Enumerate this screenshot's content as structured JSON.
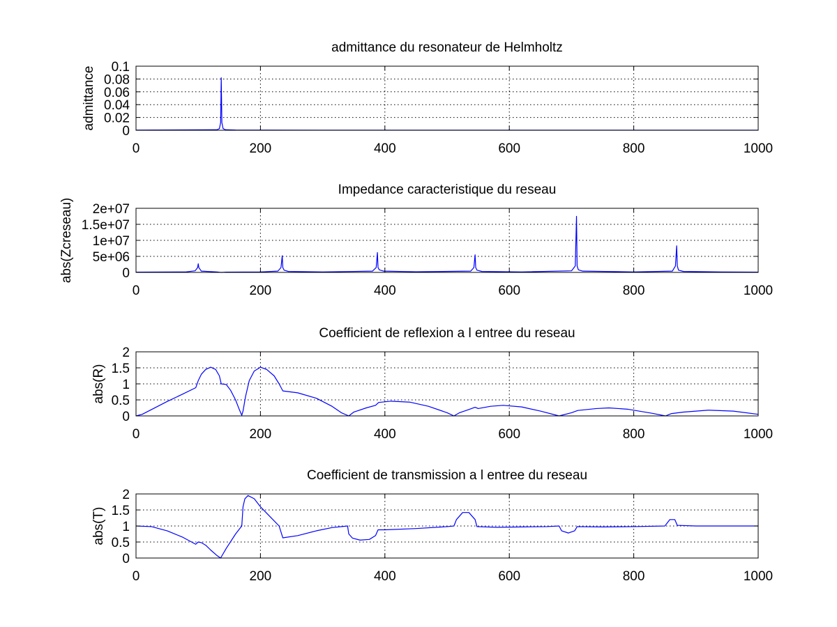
{
  "chart_data": [
    {
      "type": "line",
      "title": "admittance du resonateur de Helmholtz",
      "xlabel": "",
      "ylabel": "admittance",
      "xlim": [
        0,
        1000
      ],
      "ylim": [
        0,
        0.1
      ],
      "xticks": [
        0,
        200,
        400,
        600,
        800,
        1000
      ],
      "xtick_labels": [
        "0",
        "200",
        "400",
        "600",
        "800",
        "1000"
      ],
      "yticks": [
        0,
        0.02,
        0.04,
        0.06,
        0.08,
        0.1
      ],
      "ytick_labels": [
        "0",
        "0.02",
        "0.04",
        "0.06",
        "0.08",
        "0.1"
      ],
      "grid": true,
      "line_color": "#0000ff",
      "series": [
        {
          "x": [
            0,
            130,
            134,
            136,
            137,
            138,
            140,
            144,
            160,
            300,
            600,
            1000
          ],
          "y": [
            0.0003,
            0.0008,
            0.0025,
            0.012,
            0.082,
            0.012,
            0.0025,
            0.0008,
            0.0004,
            0.0002,
            0.0001,
            0.0001
          ]
        }
      ]
    },
    {
      "type": "line",
      "title": "Impedance caracteristique du reseau",
      "xlabel": "",
      "ylabel": "abs(Zcreseau)",
      "xlim": [
        0,
        1000
      ],
      "ylim": [
        0,
        20000000
      ],
      "xticks": [
        0,
        200,
        400,
        600,
        800,
        1000
      ],
      "xtick_labels": [
        "0",
        "200",
        "400",
        "600",
        "800",
        "1000"
      ],
      "yticks": [
        0,
        5000000,
        10000000,
        15000000,
        20000000
      ],
      "ytick_labels": [
        "0",
        "5e+06",
        "1e+07",
        "1.5e+07",
        "2e+07"
      ],
      "grid": true,
      "line_color": "#0000ff",
      "series": [
        {
          "x": [
            0,
            80,
            95,
            99,
            100,
            101,
            105,
            130,
            136,
            137,
            138,
            145,
            200,
            228,
            233,
            235,
            236,
            238,
            245,
            300,
            380,
            386,
            388,
            389,
            391,
            398,
            450,
            538,
            543,
            545,
            546,
            548,
            556,
            620,
            700,
            706,
            708,
            709,
            711,
            718,
            800,
            862,
            867,
            869,
            870,
            872,
            880,
            940,
            1000
          ],
          "y": [
            100000,
            150000,
            500000,
            1500000,
            2700000,
            1500000,
            400000,
            150000,
            0,
            0,
            0,
            80000,
            150000,
            400000,
            1500000,
            5200000,
            1500000,
            700000,
            300000,
            150000,
            400000,
            1500000,
            6200000,
            1500000,
            800000,
            400000,
            200000,
            400000,
            1500000,
            5500000,
            1500000,
            700000,
            300000,
            150000,
            500000,
            2000000,
            17500000,
            2000000,
            800000,
            400000,
            150000,
            400000,
            2000000,
            8300000,
            2000000,
            700000,
            300000,
            150000,
            100000
          ]
        }
      ]
    },
    {
      "type": "line",
      "title": "Coefficient de reflexion a l entree du reseau",
      "xlabel": "",
      "ylabel": "abs(R)",
      "xlim": [
        0,
        1000
      ],
      "ylim": [
        0,
        2
      ],
      "xticks": [
        0,
        200,
        400,
        600,
        800,
        1000
      ],
      "xtick_labels": [
        "0",
        "200",
        "400",
        "600",
        "800",
        "1000"
      ],
      "yticks": [
        0,
        0.5,
        1,
        1.5,
        2
      ],
      "ytick_labels": [
        "0",
        "0.5",
        "1",
        "1.5",
        "2"
      ],
      "grid": true,
      "line_color": "#0000ff",
      "series": [
        {
          "x": [
            0,
            10,
            25,
            50,
            75,
            96,
            100,
            105,
            112,
            120,
            128,
            134,
            137,
            145,
            152,
            160,
            166,
            170,
            172,
            176,
            182,
            190,
            200,
            210,
            222,
            230,
            236,
            260,
            290,
            315,
            330,
            342,
            350,
            370,
            385,
            390,
            410,
            440,
            470,
            500,
            511,
            520,
            535,
            545,
            550,
            570,
            590,
            620,
            650,
            680,
            700,
            710,
            740,
            760,
            790,
            830,
            851,
            860,
            880,
            920,
            960,
            1000
          ],
          "y": [
            0.0,
            0.05,
            0.2,
            0.45,
            0.68,
            0.88,
            1.1,
            1.3,
            1.45,
            1.52,
            1.45,
            1.25,
            1.0,
            0.98,
            0.8,
            0.5,
            0.2,
            0.02,
            0.15,
            0.6,
            1.1,
            1.4,
            1.52,
            1.45,
            1.25,
            1.0,
            0.78,
            0.72,
            0.55,
            0.3,
            0.1,
            0.0,
            0.12,
            0.25,
            0.33,
            0.42,
            0.46,
            0.43,
            0.3,
            0.1,
            0.0,
            0.1,
            0.2,
            0.27,
            0.23,
            0.3,
            0.33,
            0.28,
            0.15,
            0.0,
            0.1,
            0.17,
            0.23,
            0.25,
            0.21,
            0.08,
            0.0,
            0.07,
            0.12,
            0.18,
            0.15,
            0.05
          ]
        }
      ]
    },
    {
      "type": "line",
      "title": "Coefficient de transmission a l entree du reseau",
      "xlabel": "",
      "ylabel": "abs(T)",
      "xlim": [
        0,
        1000
      ],
      "ylim": [
        0,
        2
      ],
      "xticks": [
        0,
        200,
        400,
        600,
        800,
        1000
      ],
      "xtick_labels": [
        "0",
        "200",
        "400",
        "600",
        "800",
        "1000"
      ],
      "yticks": [
        0,
        0.5,
        1,
        1.5,
        2
      ],
      "ytick_labels": [
        "0",
        "0.5",
        "1",
        "1.5",
        "2"
      ],
      "grid": true,
      "line_color": "#0000ff",
      "series": [
        {
          "x": [
            0,
            25,
            50,
            75,
            96,
            100,
            105,
            112,
            120,
            130,
            136,
            145,
            160,
            170,
            172,
            175,
            180,
            190,
            200,
            215,
            230,
            236,
            260,
            290,
            315,
            340,
            342,
            348,
            360,
            375,
            385,
            389,
            400,
            450,
            500,
            511,
            515,
            525,
            535,
            545,
            548,
            580,
            620,
            660,
            680,
            684,
            695,
            705,
            709,
            750,
            800,
            850,
            852,
            858,
            866,
            870,
            900,
            950,
            1000
          ],
          "y": [
            1.0,
            0.98,
            0.85,
            0.65,
            0.43,
            0.5,
            0.48,
            0.4,
            0.25,
            0.08,
            0.0,
            0.3,
            0.75,
            1.0,
            1.6,
            1.85,
            1.95,
            1.85,
            1.6,
            1.3,
            1.0,
            0.63,
            0.7,
            0.85,
            0.95,
            1.0,
            0.75,
            0.62,
            0.56,
            0.58,
            0.7,
            0.88,
            0.88,
            0.92,
            0.98,
            1.0,
            1.2,
            1.42,
            1.42,
            1.2,
            0.98,
            0.96,
            0.97,
            0.98,
            1.0,
            0.85,
            0.78,
            0.85,
            0.98,
            0.97,
            0.98,
            1.0,
            1.05,
            1.2,
            1.2,
            1.02,
            1.0,
            1.0,
            1.0
          ]
        }
      ]
    }
  ]
}
